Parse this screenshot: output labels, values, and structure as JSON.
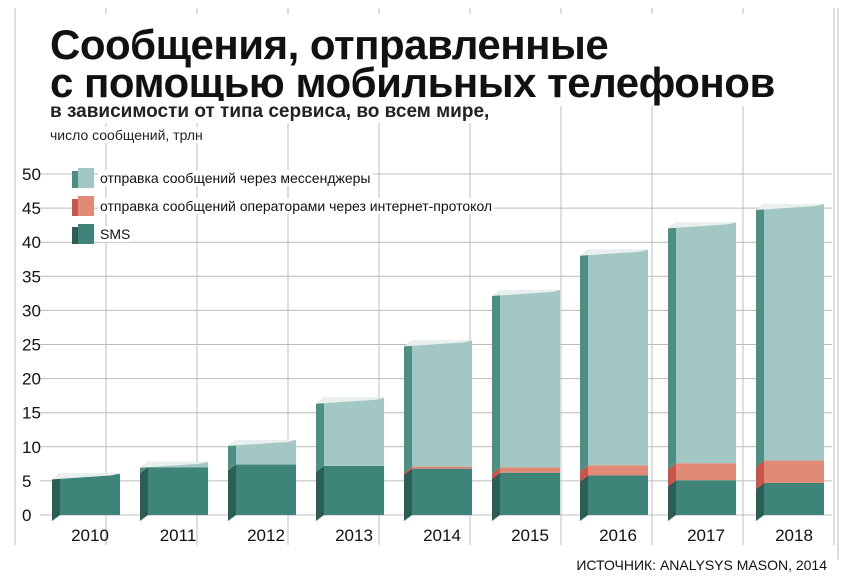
{
  "title_line1": "Сообщения, отправленные",
  "title_line2": "с помощью мобильных телефонов",
  "subtitle": "в зависимости от типа сервиса, во всем мире,",
  "unit_label": "число сообщений, трлн",
  "source": "ИСТОЧНИК: ANALYSYS MASON, 2014",
  "colors": {
    "messengers_front": "#a3c8c3",
    "messengers_side": "#4e8f84",
    "ip_front": "#e08a78",
    "ip_side": "#c9554a",
    "sms_front": "#3e8478",
    "sms_side": "#2a5e56",
    "grid": "#bcbcbc"
  },
  "chart_data": {
    "type": "bar",
    "stacked": true,
    "categories": [
      "2010",
      "2011",
      "2012",
      "2013",
      "2014",
      "2015",
      "2016",
      "2017",
      "2018"
    ],
    "series": [
      {
        "name": "SMS",
        "values": [
          6,
          7,
          7.4,
          7.2,
          6.8,
          6.2,
          5.8,
          5.1,
          4.7
        ]
      },
      {
        "name": "отправка сообщений операторами через интернет-протокол",
        "values": [
          0,
          0,
          0,
          0,
          0.3,
          0.8,
          1.5,
          2.5,
          3.3
        ]
      },
      {
        "name": "отправка сообщений через мессенджеры",
        "values": [
          0.1,
          0.8,
          3.6,
          10,
          18.5,
          26,
          31.6,
          35.3,
          37.6
        ]
      }
    ],
    "ylim": [
      0,
      50
    ],
    "yticks": [
      "0",
      "5",
      "10",
      "15",
      "20",
      "25",
      "30",
      "35",
      "40",
      "45",
      "50"
    ],
    "legend": [
      {
        "name": "отправка сообщений через мессенджеры",
        "key": "messengers"
      },
      {
        "name": "отправка сообщений операторами через интернет-протокол",
        "key": "ip"
      },
      {
        "name": "SMS",
        "key": "sms"
      }
    ],
    "grid": true,
    "legend_position": "top-left"
  }
}
